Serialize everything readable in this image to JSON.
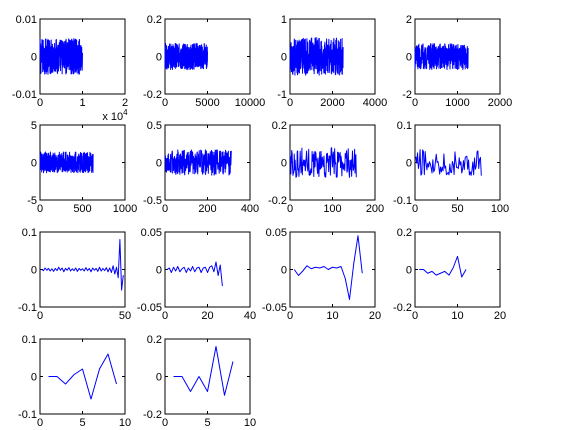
{
  "figure": {
    "background": "#ffffff",
    "line_color": "#0000ff"
  },
  "chart_data": [
    {
      "type": "line",
      "title": "",
      "xlabel": "",
      "ylabel": "",
      "xlim": [
        0,
        20000
      ],
      "ylim": [
        -0.01,
        0.01
      ],
      "xtick_labels": [
        "0",
        "1",
        "2"
      ],
      "ytick_labels": [
        "-0.01",
        "0",
        "0.01"
      ],
      "x_exponent_label": "x 10^4",
      "x_exponent_base": "x 10",
      "x_exponent_power": "4",
      "series": [
        {
          "style": "dense-noise",
          "n": 10000,
          "amplitude": 0.0048
        }
      ]
    },
    {
      "type": "line",
      "title": "",
      "xlabel": "",
      "ylabel": "",
      "xlim": [
        0,
        10000
      ],
      "ylim": [
        -0.2,
        0.2
      ],
      "xtick_labels": [
        "0",
        "5000",
        "10000"
      ],
      "ytick_labels": [
        "-0.2",
        "0",
        "0.2"
      ],
      "series": [
        {
          "style": "dense-noise",
          "n": 5000,
          "amplitude": 0.07
        }
      ]
    },
    {
      "type": "line",
      "title": "",
      "xlabel": "",
      "ylabel": "",
      "xlim": [
        0,
        4000
      ],
      "ylim": [
        -1,
        1
      ],
      "xtick_labels": [
        "0",
        "2000",
        "4000"
      ],
      "ytick_labels": [
        "-1",
        "0",
        "1"
      ],
      "series": [
        {
          "style": "dense-noise",
          "n": 2500,
          "amplitude": 0.5
        }
      ]
    },
    {
      "type": "line",
      "title": "",
      "xlabel": "",
      "ylabel": "",
      "xlim": [
        0,
        2000
      ],
      "ylim": [
        -2,
        2
      ],
      "xtick_labels": [
        "0",
        "1000",
        "2000"
      ],
      "ytick_labels": [
        "-2",
        "0",
        "2"
      ],
      "series": [
        {
          "style": "dense-noise",
          "n": 1250,
          "amplitude": 0.7
        }
      ]
    },
    {
      "type": "line",
      "title": "",
      "xlabel": "",
      "ylabel": "",
      "xlim": [
        0,
        1000
      ],
      "ylim": [
        -5,
        5
      ],
      "xtick_labels": [
        "0",
        "500",
        "1000"
      ],
      "ytick_labels": [
        "-5",
        "0",
        "5"
      ],
      "series": [
        {
          "style": "dense-noise",
          "n": 625,
          "amplitude": 1.4
        }
      ]
    },
    {
      "type": "line",
      "title": "",
      "xlabel": "",
      "ylabel": "",
      "xlim": [
        0,
        400
      ],
      "ylim": [
        -0.5,
        0.5
      ],
      "xtick_labels": [
        "0",
        "200",
        "400"
      ],
      "ytick_labels": [
        "-0.5",
        "0",
        "0.5"
      ],
      "series": [
        {
          "style": "dense-noise",
          "n": 312,
          "amplitude": 0.17
        }
      ]
    },
    {
      "type": "line",
      "title": "",
      "xlabel": "",
      "ylabel": "",
      "xlim": [
        0,
        200
      ],
      "ylim": [
        -0.2,
        0.2
      ],
      "xtick_labels": [
        "0",
        "100",
        "200"
      ],
      "ytick_labels": [
        "-0.2",
        "0",
        "0.2"
      ],
      "series": [
        {
          "style": "dense-noise",
          "n": 156,
          "amplitude": 0.08
        }
      ]
    },
    {
      "type": "line",
      "title": "",
      "xlabel": "",
      "ylabel": "",
      "xlim": [
        0,
        100
      ],
      "ylim": [
        -0.1,
        0.1
      ],
      "xtick_labels": [
        "0",
        "50",
        "100"
      ],
      "ytick_labels": [
        "-0.1",
        "0",
        "0.1"
      ],
      "series": [
        {
          "style": "dense-noise",
          "n": 78,
          "amplitude": 0.035
        }
      ]
    },
    {
      "type": "line",
      "title": "",
      "xlabel": "",
      "ylabel": "",
      "xlim": [
        0,
        50
      ],
      "ylim": [
        -0.1,
        0.1
      ],
      "xtick_labels": [
        "0",
        "50"
      ],
      "ytick_labels": [
        "-0.1",
        "0",
        "0.1"
      ],
      "series": [
        {
          "style": "points",
          "x": [
            1,
            2,
            3,
            4,
            5,
            6,
            7,
            8,
            9,
            10,
            11,
            12,
            13,
            14,
            15,
            16,
            17,
            18,
            19,
            20,
            21,
            22,
            23,
            24,
            25,
            26,
            27,
            28,
            29,
            30,
            31,
            32,
            33,
            34,
            35,
            36,
            37,
            38,
            39,
            40,
            41,
            42,
            43,
            44,
            45,
            46,
            47,
            48,
            49
          ],
          "y": [
            0.0,
            -0.003,
            0.004,
            -0.002,
            0.003,
            -0.004,
            0.002,
            -0.005,
            0.003,
            -0.003,
            0.006,
            -0.002,
            0.004,
            -0.006,
            0.003,
            -0.002,
            0.005,
            -0.004,
            0.002,
            -0.003,
            0.004,
            -0.005,
            0.003,
            -0.002,
            0.002,
            -0.004,
            0.005,
            -0.003,
            0.003,
            -0.006,
            0.004,
            -0.002,
            0.003,
            -0.005,
            0.006,
            -0.004,
            0.003,
            -0.003,
            0.005,
            -0.006,
            0.004,
            -0.008,
            0.01,
            -0.012,
            0.006,
            -0.022,
            0.08,
            -0.055,
            -0.015
          ]
        }
      ]
    },
    {
      "type": "line",
      "title": "",
      "xlabel": "",
      "ylabel": "",
      "xlim": [
        0,
        40
      ],
      "ylim": [
        -0.05,
        0.05
      ],
      "xtick_labels": [
        "0",
        "20",
        "40"
      ],
      "ytick_labels": [
        "-0.05",
        "0",
        "0.05"
      ],
      "series": [
        {
          "style": "points",
          "x": [
            1,
            2,
            3,
            4,
            5,
            6,
            7,
            8,
            9,
            10,
            11,
            12,
            13,
            14,
            15,
            16,
            17,
            18,
            19,
            20,
            21,
            22,
            23,
            24,
            25,
            26,
            27
          ],
          "y": [
            0.0,
            0.002,
            -0.004,
            0.003,
            -0.002,
            0.004,
            -0.003,
            0.001,
            0.003,
            -0.004,
            0.002,
            -0.002,
            0.004,
            -0.003,
            0.002,
            0.003,
            -0.004,
            0.002,
            0.003,
            -0.004,
            0.003,
            0.005,
            -0.003,
            0.01,
            -0.008,
            0.006,
            -0.022
          ]
        }
      ]
    },
    {
      "type": "line",
      "title": "",
      "xlabel": "",
      "ylabel": "",
      "xlim": [
        0,
        20
      ],
      "ylim": [
        -0.05,
        0.05
      ],
      "xtick_labels": [
        "0",
        "10",
        "20"
      ],
      "ytick_labels": [
        "-0.05",
        "0",
        "0.05"
      ],
      "series": [
        {
          "style": "points",
          "x": [
            1,
            2,
            3,
            4,
            5,
            6,
            7,
            8,
            9,
            10,
            11,
            12,
            13,
            14,
            15,
            16,
            17
          ],
          "y": [
            0.0,
            -0.008,
            -0.002,
            0.005,
            0.001,
            0.003,
            0.002,
            0.004,
            0.0,
            0.003,
            0.002,
            0.004,
            -0.012,
            -0.04,
            0.008,
            0.045,
            -0.005
          ]
        }
      ]
    },
    {
      "type": "line",
      "title": "",
      "xlabel": "",
      "ylabel": "",
      "xlim": [
        0,
        20
      ],
      "ylim": [
        -0.2,
        0.2
      ],
      "xtick_labels": [
        "0",
        "10",
        "20"
      ],
      "ytick_labels": [
        "-0.2",
        "0",
        "0.2"
      ],
      "series": [
        {
          "style": "points",
          "x": [
            1,
            2,
            3,
            4,
            5,
            6,
            7,
            8,
            9,
            10,
            11,
            12
          ],
          "y": [
            0.0,
            0.0,
            -0.02,
            -0.01,
            -0.03,
            -0.02,
            -0.01,
            -0.03,
            0.01,
            0.07,
            -0.04,
            0.0
          ]
        }
      ]
    },
    {
      "type": "line",
      "title": "",
      "xlabel": "",
      "ylabel": "",
      "xlim": [
        0,
        10
      ],
      "ylim": [
        -0.1,
        0.1
      ],
      "xtick_labels": [
        "0",
        "5",
        "10"
      ],
      "ytick_labels": [
        "-0.1",
        "0",
        "0.1"
      ],
      "series": [
        {
          "style": "points",
          "x": [
            1,
            2,
            3,
            4,
            5,
            6,
            7,
            8,
            9
          ],
          "y": [
            0.0,
            0.0,
            -0.02,
            0.005,
            0.02,
            -0.06,
            0.02,
            0.06,
            -0.02
          ]
        }
      ]
    },
    {
      "type": "line",
      "title": "",
      "xlabel": "",
      "ylabel": "",
      "xlim": [
        0,
        10
      ],
      "ylim": [
        -0.2,
        0.2
      ],
      "xtick_labels": [
        "0",
        "5",
        "10"
      ],
      "ytick_labels": [
        "-0.2",
        "0",
        "0.2"
      ],
      "series": [
        {
          "style": "points",
          "x": [
            1,
            2,
            3,
            4,
            5,
            6,
            7,
            8
          ],
          "y": [
            0.0,
            0.0,
            -0.08,
            0.0,
            -0.08,
            0.16,
            -0.1,
            0.08
          ]
        }
      ]
    }
  ]
}
